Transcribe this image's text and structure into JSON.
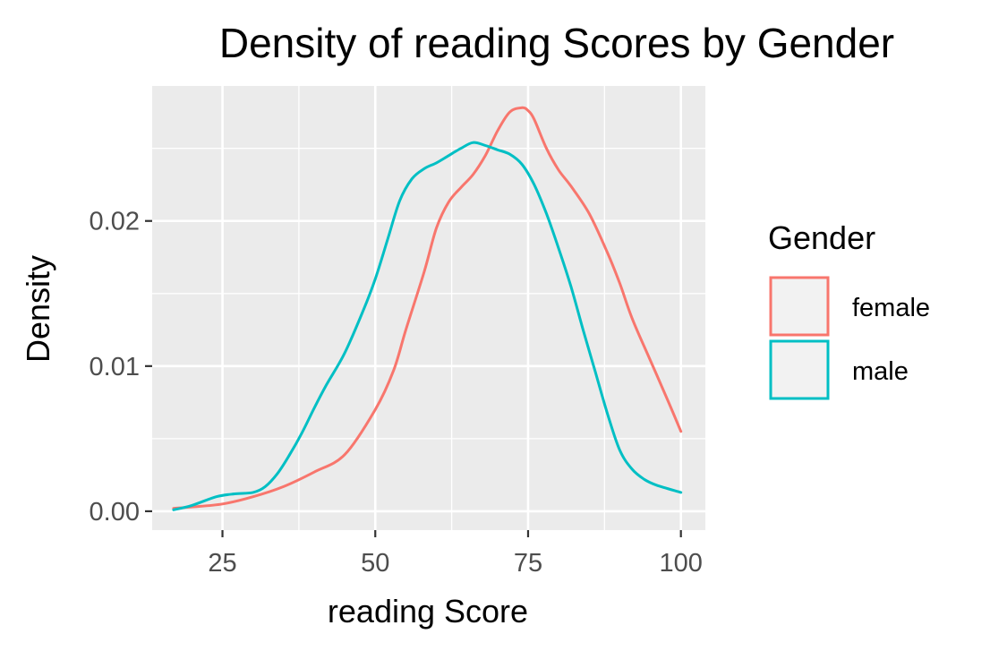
{
  "chart_data": {
    "type": "line",
    "title": "Density of reading Scores by Gender",
    "xlabel": "reading Score",
    "ylabel": "Density",
    "xlim": [
      13.5,
      104
    ],
    "ylim": [
      -0.0013,
      0.0293
    ],
    "x_ticks": [
      25,
      50,
      75,
      100
    ],
    "y_ticks": [
      0.0,
      0.01,
      0.02
    ],
    "x_tick_labels": [
      "25",
      "50",
      "75",
      "100"
    ],
    "y_tick_labels": [
      "0.00",
      "0.01",
      "0.02"
    ],
    "grid": true,
    "legend": {
      "title": "Gender",
      "position": "right"
    },
    "colors": {
      "panel_background": "#ebebeb",
      "grid": "#ffffff",
      "tick": "#333333",
      "legend_key_fill": "#f2f2f2"
    },
    "series": [
      {
        "name": "female",
        "color": "#f8766d",
        "x": [
          17,
          20,
          25,
          30,
          35,
          40,
          45,
          50,
          53,
          55,
          58,
          60,
          62,
          64,
          66,
          68,
          70,
          72,
          74,
          75,
          76,
          78,
          80,
          82,
          85,
          88,
          90,
          92,
          95,
          98,
          100
        ],
        "y": [
          0.0002,
          0.0003,
          0.0005,
          0.001,
          0.0017,
          0.0027,
          0.0039,
          0.007,
          0.0097,
          0.0125,
          0.0165,
          0.0195,
          0.0213,
          0.0223,
          0.0232,
          0.0245,
          0.0262,
          0.0275,
          0.0278,
          0.0276,
          0.027,
          0.025,
          0.0235,
          0.0224,
          0.0205,
          0.0178,
          0.0157,
          0.0133,
          0.0104,
          0.0075,
          0.0055
        ]
      },
      {
        "name": "male",
        "color": "#00bfc4",
        "x": [
          17,
          20,
          24,
          27,
          30,
          32,
          34,
          36,
          38,
          40,
          42,
          45,
          48,
          50,
          52,
          54,
          56,
          58,
          60,
          62,
          64,
          66,
          68,
          70,
          72,
          74,
          76,
          78,
          80,
          82,
          84,
          86,
          88,
          90,
          92,
          94,
          96,
          100
        ],
        "y": [
          0.0001,
          0.0004,
          0.001,
          0.0012,
          0.0013,
          0.0017,
          0.0026,
          0.0039,
          0.0054,
          0.0071,
          0.0087,
          0.0109,
          0.0138,
          0.016,
          0.0187,
          0.0214,
          0.0229,
          0.0236,
          0.024,
          0.0245,
          0.025,
          0.0254,
          0.0252,
          0.0249,
          0.0246,
          0.0239,
          0.0225,
          0.0205,
          0.0181,
          0.0155,
          0.0125,
          0.0096,
          0.0067,
          0.0042,
          0.0029,
          0.0022,
          0.0018,
          0.0013
        ]
      }
    ]
  }
}
